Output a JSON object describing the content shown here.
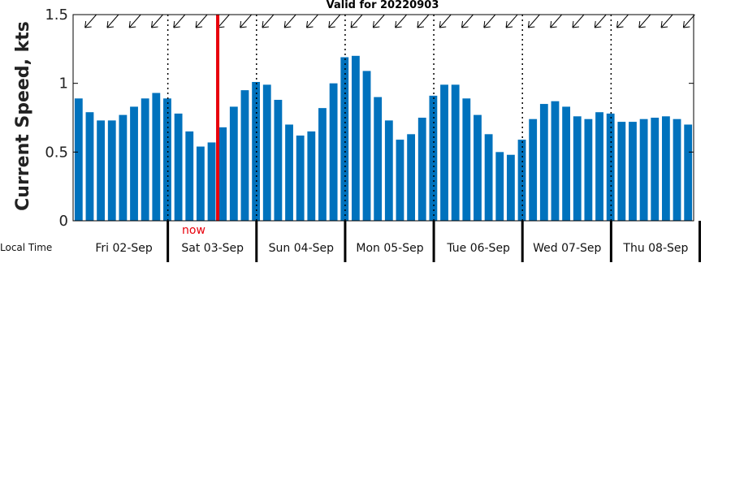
{
  "chart_data": {
    "type": "bar",
    "title": "Valid for 20220903",
    "ylabel": "Current Speed, kts",
    "ylim": [
      0,
      1.5
    ],
    "yticks": [
      0,
      0.5,
      1,
      1.5
    ],
    "ytick_labels": [
      "0",
      "0.5",
      "1",
      "1.5"
    ],
    "bar_color": "#0072bd",
    "now_color": "#e8000b",
    "now_label": "now",
    "now_index": 13,
    "local_time_label": "Local Time",
    "days": [
      "Fri 02-Sep",
      "Sat 03-Sep",
      "Sun 04-Sep",
      "Mon 05-Sep",
      "Tue 06-Sep",
      "Wed 07-Sep",
      "Thu 08-Sep"
    ],
    "grid": false,
    "direction_arrows": "southwest-pointing current direction arrows across top of plot",
    "values": [
      0.89,
      0.79,
      0.73,
      0.73,
      0.77,
      0.83,
      0.89,
      0.93,
      0.89,
      0.78,
      0.65,
      0.54,
      0.57,
      0.68,
      0.83,
      0.95,
      1.01,
      0.99,
      0.88,
      0.7,
      0.62,
      0.65,
      0.82,
      1.0,
      1.19,
      1.2,
      1.09,
      0.9,
      0.73,
      0.59,
      0.63,
      0.75,
      0.91,
      0.99,
      0.99,
      0.89,
      0.77,
      0.63,
      0.5,
      0.48,
      0.59,
      0.74,
      0.85,
      0.87,
      0.83,
      0.76,
      0.74,
      0.79,
      0.78,
      0.72,
      0.72,
      0.74,
      0.75,
      0.76,
      0.74,
      0.7
    ]
  }
}
